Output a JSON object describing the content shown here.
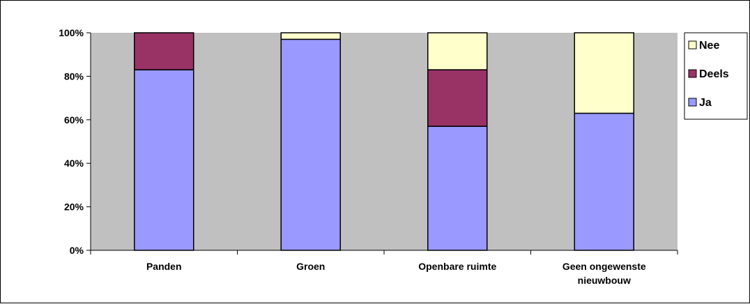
{
  "chart_data": {
    "type": "bar",
    "stacked": true,
    "percent_stacked": true,
    "categories": [
      [
        "Panden"
      ],
      [
        "Groen"
      ],
      [
        "Openbare ruimte"
      ],
      [
        "Geen ongewenste",
        "nieuwbouw"
      ]
    ],
    "series": [
      {
        "name": "Ja",
        "color": "#9999ff",
        "values": [
          83,
          97,
          57,
          63
        ]
      },
      {
        "name": "Deels",
        "color": "#993366",
        "values": [
          17,
          0,
          26,
          0
        ]
      },
      {
        "name": "Nee",
        "color": "#ffffcc",
        "values": [
          0,
          3,
          17,
          37
        ]
      }
    ],
    "legend_order": [
      "Nee",
      "Deels",
      "Ja"
    ],
    "ylim": [
      0,
      100
    ],
    "yticks": [
      "0%",
      "20%",
      "40%",
      "60%",
      "80%",
      "100%"
    ],
    "plot_background": "#c0c0c0",
    "legend_position": "right",
    "grid": false
  }
}
